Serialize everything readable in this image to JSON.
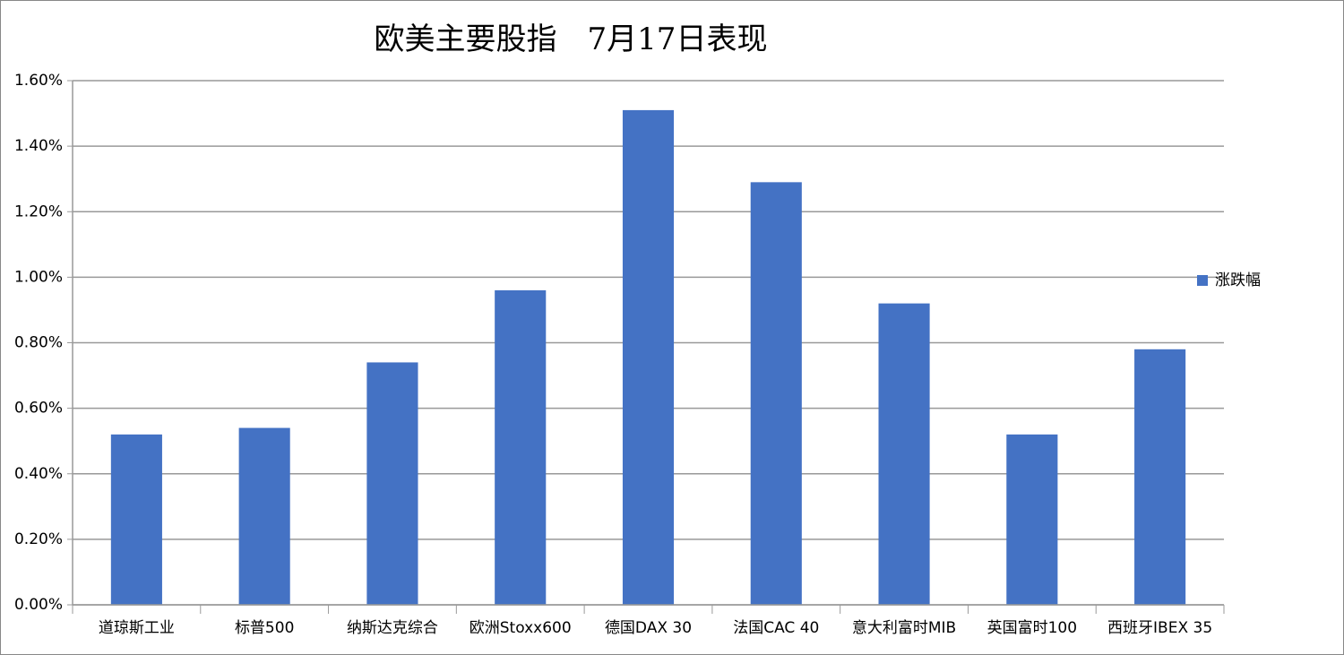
{
  "chart_data": {
    "type": "bar",
    "title": "欧美主要股指　7月17日表现",
    "categories": [
      "道琼斯工业",
      "标普500",
      "纳斯达克综合",
      "欧洲Stoxx600",
      "德国DAX 30",
      "法国CAC 40",
      "意大利富时MIB",
      "英国富时100",
      "西班牙IBEX 35"
    ],
    "series": [
      {
        "name": "涨跌幅",
        "color": "#4472c4",
        "values": [
          0.52,
          0.54,
          0.74,
          0.96,
          1.51,
          1.29,
          0.92,
          0.52,
          0.78
        ]
      }
    ],
    "ylim": [
      0,
      1.6
    ],
    "yticks": [
      {
        "value": 0,
        "label": "0.00%"
      },
      {
        "value": 0.2,
        "label": "0.20%"
      },
      {
        "value": 0.4,
        "label": "0.40%"
      },
      {
        "value": 0.6,
        "label": "0.60%"
      },
      {
        "value": 0.8,
        "label": "0.80%"
      },
      {
        "value": 1.0,
        "label": "1.00%"
      },
      {
        "value": 1.2,
        "label": "1.20%"
      },
      {
        "value": 1.4,
        "label": "1.40%"
      },
      {
        "value": 1.6,
        "label": "1.60%"
      }
    ],
    "grid": true,
    "legend": "right"
  }
}
